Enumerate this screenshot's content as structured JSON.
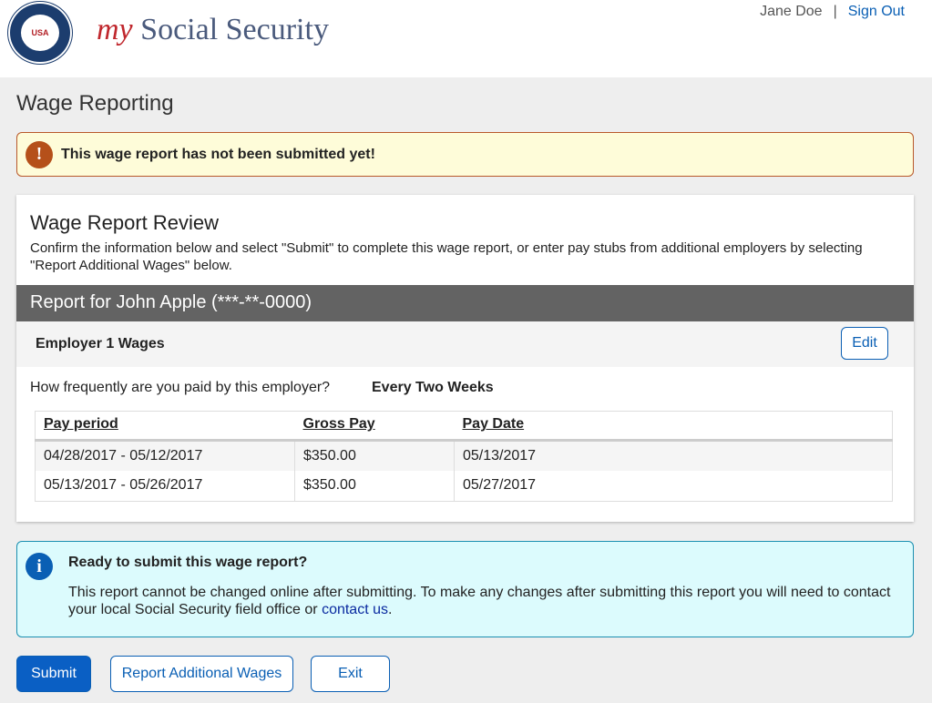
{
  "header": {
    "logo_text": "SOCIAL SECURITY ADMINISTRATION USA",
    "brand_my": "my",
    "brand_rest": "Social Security",
    "user_name": "Jane Doe",
    "separator": "|",
    "sign_out": "Sign Out"
  },
  "page_title": "Wage Reporting",
  "alert": {
    "icon": "exclamation-icon",
    "text": "This wage report has not been submitted yet!"
  },
  "review": {
    "title": "Wage Report Review",
    "description": "Confirm the information below and select \"Submit\" to complete this wage report, or enter pay stubs from additional employers by selecting \"Report Additional Wages\" below.",
    "report_for": "Report for John Apple (***-**-0000)",
    "employer": {
      "title": "Employer 1 Wages",
      "edit_label": "Edit",
      "frequency_question": "How frequently are you paid by this employer?",
      "frequency_value": "Every Two Weeks"
    },
    "table": {
      "headers": [
        "Pay period",
        "Gross Pay",
        "Pay Date"
      ],
      "rows": [
        [
          "04/28/2017 - 05/12/2017",
          "$350.00",
          "05/13/2017"
        ],
        [
          "05/13/2017 - 05/26/2017",
          "$350.00",
          "05/27/2017"
        ]
      ]
    }
  },
  "info": {
    "icon": "info-icon",
    "title": "Ready to submit this wage report?",
    "text": "This report cannot be changed online after submitting. To make any changes after submitting this report you will need to contact your local Social Security field office or ",
    "link": "contact us",
    "end": "."
  },
  "actions": {
    "submit": "Submit",
    "additional": "Report Additional Wages",
    "exit": "Exit"
  }
}
